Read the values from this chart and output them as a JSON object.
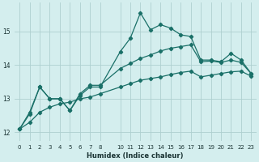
{
  "xlabel": "Humidex (Indice chaleur)",
  "background_color": "#d4eeee",
  "grid_color": "#b8d8d8",
  "line_color": "#1a7068",
  "xlim": [
    -0.5,
    23.5
  ],
  "ylim": [
    11.75,
    15.85
  ],
  "yticks": [
    12,
    13,
    14,
    15
  ],
  "xticks": [
    0,
    1,
    2,
    3,
    4,
    5,
    6,
    7,
    8,
    10,
    11,
    12,
    13,
    14,
    15,
    16,
    17,
    18,
    19,
    20,
    21,
    22,
    23
  ],
  "main_x": [
    0,
    1,
    2,
    3,
    4,
    5,
    6,
    7,
    8,
    10,
    11,
    12,
    13,
    14,
    15,
    16,
    17,
    18,
    19,
    20,
    21,
    22,
    23
  ],
  "main_y": [
    12.1,
    12.6,
    13.35,
    13.0,
    13.0,
    12.65,
    13.1,
    13.35,
    13.35,
    14.4,
    14.8,
    15.55,
    15.05,
    15.2,
    15.1,
    14.9,
    14.85,
    14.15,
    14.15,
    14.1,
    14.35,
    14.15,
    13.75
  ],
  "mid_x": [
    0,
    1,
    2,
    3,
    4,
    5,
    6,
    7,
    8,
    10,
    11,
    12,
    13,
    14,
    15,
    16,
    17,
    18,
    19,
    20,
    21,
    22,
    23
  ],
  "mid_y": [
    12.1,
    12.55,
    13.35,
    13.0,
    13.0,
    12.65,
    13.15,
    13.4,
    13.4,
    13.9,
    14.05,
    14.2,
    14.3,
    14.42,
    14.5,
    14.55,
    14.6,
    14.1,
    14.12,
    14.08,
    14.15,
    14.08,
    13.75
  ],
  "low_x": [
    0,
    1,
    2,
    3,
    4,
    5,
    6,
    7,
    8,
    10,
    11,
    12,
    13,
    14,
    15,
    16,
    17,
    18,
    19,
    20,
    21,
    22,
    23
  ],
  "low_y": [
    12.1,
    12.3,
    12.6,
    12.75,
    12.85,
    12.9,
    13.0,
    13.05,
    13.15,
    13.35,
    13.45,
    13.55,
    13.6,
    13.65,
    13.72,
    13.78,
    13.82,
    13.65,
    13.7,
    13.75,
    13.8,
    13.82,
    13.67
  ]
}
